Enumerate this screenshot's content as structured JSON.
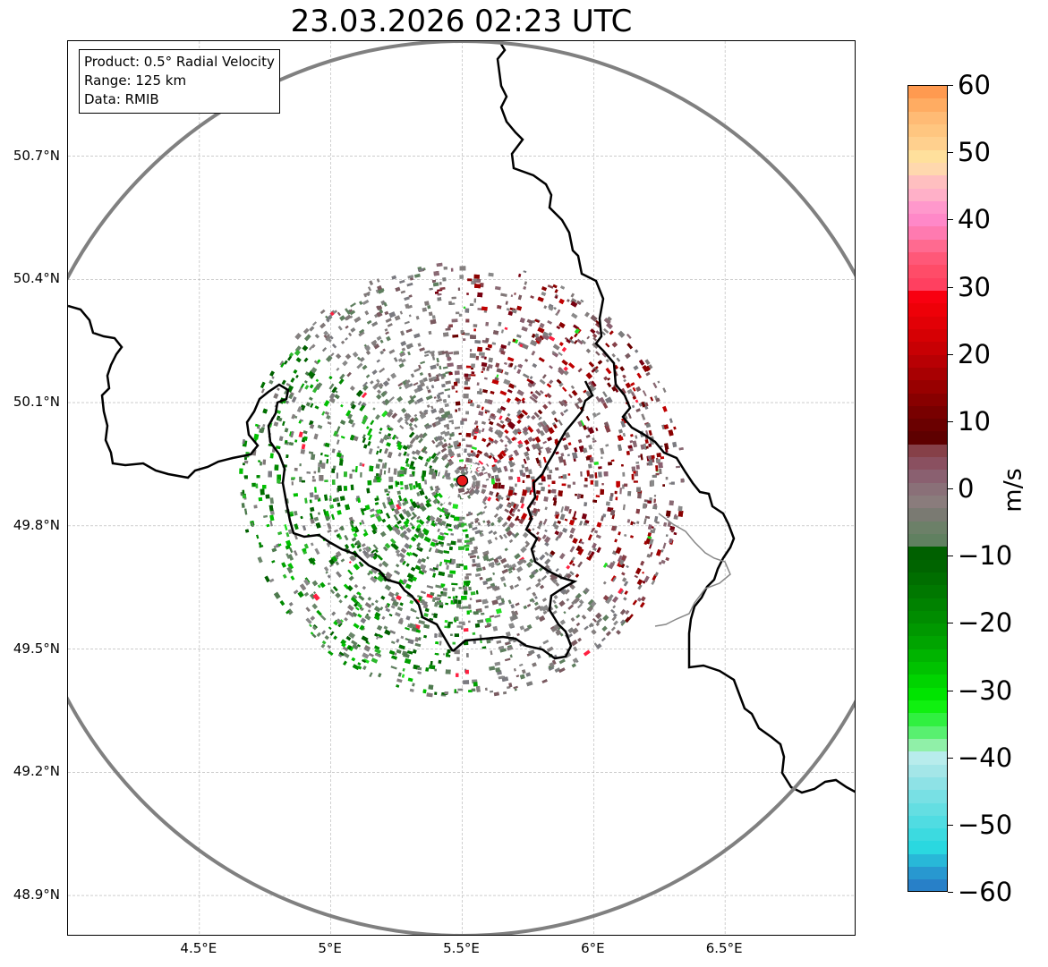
{
  "title": "23.03.2026 02:23 UTC",
  "info": {
    "product": "Product: 0.5° Radial Velocity",
    "range": "Range: 125 km",
    "source": "Data: RMIB"
  },
  "radar_site": {
    "lon": 5.5,
    "lat": 49.91,
    "marker_color": "#e8191a",
    "label": "radar-site"
  },
  "map_extent": {
    "lon_min": 4.0,
    "lon_max": 7.0,
    "lat_min": 48.8,
    "lat_max": 50.98
  },
  "latitude_ticks": [
    {
      "value": 50.7,
      "label": "50.7°N"
    },
    {
      "value": 50.4,
      "label": "50.4°N"
    },
    {
      "value": 50.1,
      "label": "50.1°N"
    },
    {
      "value": 49.8,
      "label": "49.8°N"
    },
    {
      "value": 49.5,
      "label": "49.5°N"
    },
    {
      "value": 49.2,
      "label": "49.2°N"
    },
    {
      "value": 48.9,
      "label": "48.9°N"
    }
  ],
  "longitude_ticks": [
    {
      "value": 4.5,
      "label": "4.5°E"
    },
    {
      "value": 5.0,
      "label": "5°E"
    },
    {
      "value": 5.5,
      "label": "5.5°E"
    },
    {
      "value": 6.0,
      "label": "6°E"
    },
    {
      "value": 6.5,
      "label": "6.5°E"
    }
  ],
  "colorbar": {
    "label": "m/s",
    "min": -60,
    "max": 60,
    "ticks": [
      {
        "value": 60,
        "label": "60"
      },
      {
        "value": 50,
        "label": "50"
      },
      {
        "value": 40,
        "label": "40"
      },
      {
        "value": 30,
        "label": "30"
      },
      {
        "value": 20,
        "label": "20"
      },
      {
        "value": 10,
        "label": "10"
      },
      {
        "value": 0,
        "label": "0"
      },
      {
        "value": -10,
        "label": "−10"
      },
      {
        "value": -20,
        "label": "−20"
      },
      {
        "value": -30,
        "label": "−30"
      },
      {
        "value": -40,
        "label": "−40"
      },
      {
        "value": -50,
        "label": "−50"
      },
      {
        "value": -60,
        "label": "−60"
      }
    ],
    "colors_top_to_bottom": [
      "#ff9a50",
      "#ffac62",
      "#ffbb75",
      "#ffc680",
      "#ffd08e",
      "#ffe09c",
      "#ffd8ae",
      "#ffbfc0",
      "#ffb0c8",
      "#ff98cc",
      "#ff88c8",
      "#ff7ab0",
      "#ff6a90",
      "#ff5878",
      "#ff4c68",
      "#ff4060",
      "#f80010",
      "#ee0008",
      "#e20006",
      "#d60004",
      "#c80004",
      "#b80004",
      "#a80002",
      "#980000",
      "#880000",
      "#780000",
      "#6a0000",
      "#5e0000",
      "#864048",
      "#8a5060",
      "#8a6070",
      "#8a7078",
      "#8a7c7c",
      "#7a7a72",
      "#6c8068",
      "#608060",
      "#006000",
      "#006400",
      "#006e00",
      "#007800",
      "#008200",
      "#008c00",
      "#009800",
      "#00a400",
      "#00b400",
      "#00c200",
      "#00d400",
      "#00e400",
      "#10f010",
      "#30f040",
      "#58f070",
      "#90f0a8",
      "#b8ecec",
      "#a4e6e8",
      "#8ee2e6",
      "#78e0e4",
      "#64dee2",
      "#50dce2",
      "#3cdae0",
      "#2ad8e0",
      "#28b8d8",
      "#2898d0",
      "#2880c8"
    ]
  },
  "chart_data": {
    "type": "map",
    "title": "23.03.2026 02:23 UTC",
    "product": "0.5° Radial Velocity",
    "range_km": 125,
    "data_source": "RMIB",
    "radar_lon": 5.5,
    "radar_lat": 49.91,
    "colorbar_range": [
      -60,
      60
    ],
    "colorbar_unit": "m/s",
    "velocity_pattern": "receding (positive, red) east/northeast of radar; approaching (negative, green) southwest/west of radar"
  }
}
